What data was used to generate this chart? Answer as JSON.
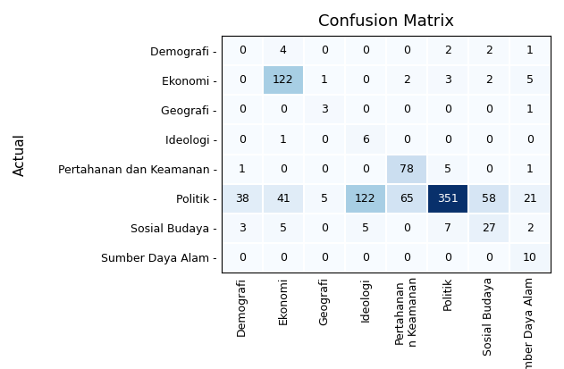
{
  "title": "Confusion Matrix",
  "ylabel": "Actual",
  "matrix": [
    [
      0,
      4,
      0,
      0,
      0,
      2,
      2,
      1
    ],
    [
      0,
      122,
      1,
      0,
      2,
      3,
      2,
      5
    ],
    [
      0,
      0,
      3,
      0,
      0,
      0,
      0,
      1
    ],
    [
      0,
      1,
      0,
      6,
      0,
      0,
      0,
      0
    ],
    [
      1,
      0,
      0,
      0,
      78,
      5,
      0,
      1
    ],
    [
      38,
      41,
      5,
      122,
      65,
      351,
      58,
      21
    ],
    [
      3,
      5,
      0,
      5,
      0,
      7,
      27,
      2
    ],
    [
      0,
      0,
      0,
      0,
      0,
      0,
      0,
      10
    ]
  ],
  "row_labels": [
    "Demografi -",
    "Ekonomi -",
    "Geografi -",
    "Ideologi -",
    "Pertahanan dan Keamanan -",
    "Politik -",
    "Sosial Budaya -",
    "Sumber Daya Alam -"
  ],
  "col_labels": [
    "Demografi",
    "Ekonomi",
    "Geografi",
    "Ideologi",
    "Pertahanan\nn Keamanan",
    "Politik",
    "Sosial Budaya\n",
    "Sumber Daya\nAlam"
  ],
  "colormap": "Blues",
  "title_fontsize": 13,
  "tick_fontsize": 9,
  "ylabel_fontsize": 11,
  "cell_fontsize": 9,
  "figsize": [
    6.31,
    4.13
  ],
  "dpi": 100
}
